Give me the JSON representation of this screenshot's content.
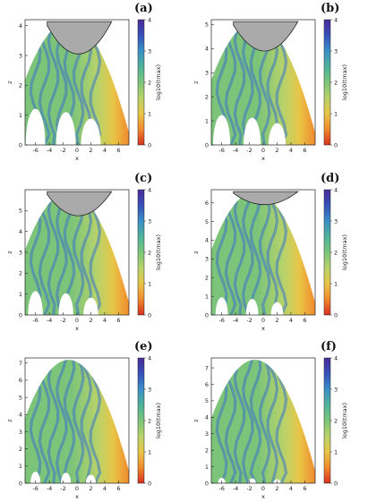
{
  "chart_data": [
    {
      "type": "heatmap",
      "label": "(a)",
      "xlabel": "x",
      "ylabel": "z",
      "xlim": [
        -7.5,
        7.5
      ],
      "ylim": [
        0,
        4.2
      ],
      "xticks": [
        "-6",
        "-4",
        "-2",
        "0",
        "2",
        "4",
        "6"
      ],
      "yticks": [
        "0",
        "1",
        "2",
        "3",
        "4"
      ],
      "colorbar": {
        "label": "log10(tmax)",
        "range": [
          0,
          4
        ],
        "ticks": [
          "0",
          "1",
          "2",
          "3",
          "4"
        ]
      },
      "cap_apex_z": 3.05
    },
    {
      "type": "heatmap",
      "label": "(b)",
      "xlabel": "x",
      "ylabel": "z",
      "xlim": [
        -7.5,
        7.5
      ],
      "ylim": [
        0,
        5.2
      ],
      "xticks": [
        "-6",
        "-4",
        "-2",
        "0",
        "2",
        "4",
        "6"
      ],
      "yticks": [
        "0",
        "1",
        "2",
        "3",
        "4",
        "5"
      ],
      "colorbar": {
        "label": "log10(tmax)",
        "range": [
          0,
          4
        ],
        "ticks": [
          "0",
          "1",
          "2",
          "3",
          "4"
        ]
      },
      "cap_apex_z": 3.9
    },
    {
      "type": "heatmap",
      "label": "(c)",
      "xlabel": "x",
      "ylabel": "z",
      "xlim": [
        -7.5,
        7.5
      ],
      "ylim": [
        0,
        6.0
      ],
      "xticks": [
        "-6",
        "-4",
        "-2",
        "0",
        "2",
        "4",
        "6"
      ],
      "yticks": [
        "0",
        "1",
        "2",
        "3",
        "4",
        "5"
      ],
      "colorbar": {
        "label": "log10(tmax)",
        "range": [
          0,
          4
        ],
        "ticks": [
          "0",
          "1",
          "2",
          "3",
          "4"
        ]
      },
      "cap_apex_z": 4.75
    },
    {
      "type": "heatmap",
      "label": "(d)",
      "xlabel": "x",
      "ylabel": "z",
      "xlim": [
        -7.5,
        7.5
      ],
      "ylim": [
        0,
        6.7
      ],
      "xticks": [
        "-6",
        "-4",
        "-2",
        "0",
        "2",
        "4",
        "6"
      ],
      "yticks": [
        "0",
        "1",
        "2",
        "3",
        "4",
        "5",
        "6"
      ],
      "colorbar": {
        "label": "log10(tmax)",
        "range": [
          0,
          4
        ],
        "ticks": [
          "0",
          "1",
          "2",
          "3",
          "4"
        ]
      },
      "cap_apex_z": 5.9
    },
    {
      "type": "heatmap",
      "label": "(e)",
      "xlabel": "x",
      "ylabel": "z",
      "xlim": [
        -7.5,
        7.5
      ],
      "ylim": [
        0,
        7.3
      ],
      "xticks": [
        "-6",
        "-4",
        "-2",
        "0",
        "2",
        "4",
        "6"
      ],
      "yticks": [
        "0",
        "1",
        "2",
        "3",
        "4",
        "5",
        "6",
        "7"
      ],
      "colorbar": {
        "label": "log10(tmax)",
        "range": [
          0,
          4
        ],
        "ticks": [
          "0",
          "1",
          "2",
          "3",
          "4"
        ]
      }
    },
    {
      "type": "heatmap",
      "label": "(f)",
      "xlabel": "x",
      "ylabel": "z",
      "xlim": [
        -7.5,
        7.5
      ],
      "ylim": [
        0,
        7.6
      ],
      "xticks": [
        "-6",
        "-4",
        "-2",
        "0",
        "2",
        "4",
        "6"
      ],
      "yticks": [
        "0",
        "1",
        "2",
        "3",
        "4",
        "5",
        "6",
        "7"
      ],
      "colorbar": {
        "label": "log10(tmax)",
        "range": [
          0,
          4
        ],
        "ticks": [
          "0",
          "1",
          "2",
          "3",
          "4"
        ]
      }
    }
  ],
  "colors": {
    "cmap": [
      "#d7301f",
      "#f08a2c",
      "#e8c547",
      "#b8d36a",
      "#7cc47a",
      "#4fb39a",
      "#3a8fc7",
      "#3550b8",
      "#4a2a9a"
    ],
    "cap": "#aaaaaa",
    "swirl": "#3a74c8",
    "background": "#ffffff"
  }
}
